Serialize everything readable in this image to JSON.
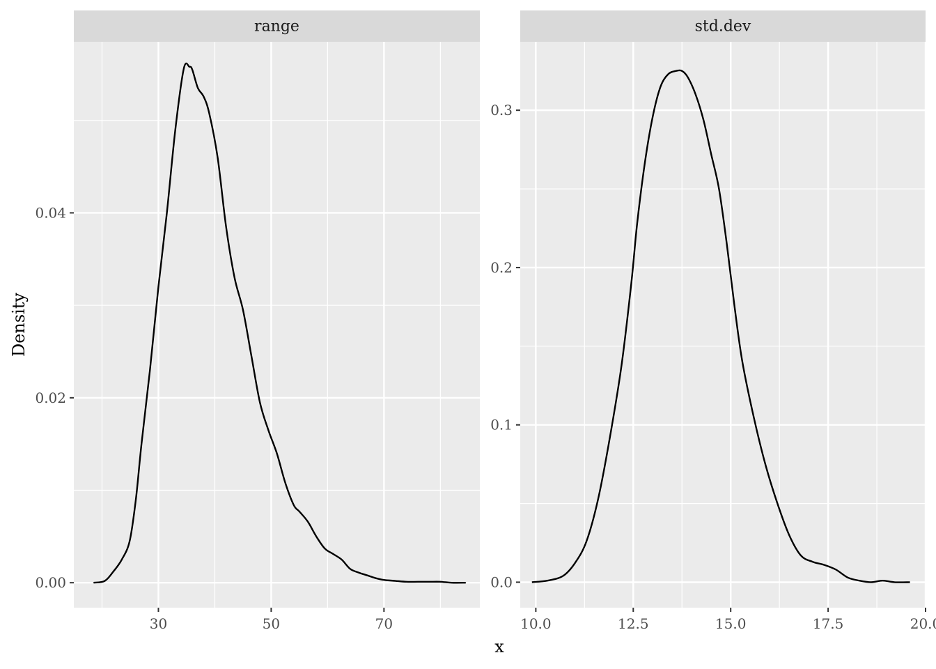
{
  "chart_data": {
    "type": "line",
    "facet_layout": "1 row, 2 columns, independent scales",
    "xlabel": "x",
    "ylabel": "Density",
    "grid": true,
    "colors": {
      "panel_bg": "#EBEBEB",
      "strip_bg": "#D9D9D9",
      "grid_major": "#FFFFFF",
      "line": "#000000"
    },
    "panels": [
      {
        "strip_label": "range",
        "xlim": [
          15,
          87
        ],
        "ylim": [
          -0.0027,
          0.0585
        ],
        "x_ticks": [
          30,
          50,
          70
        ],
        "x_tick_labels": [
          "30",
          "50",
          "70"
        ],
        "x_minor_ticks": [
          20,
          40,
          60,
          80
        ],
        "y_ticks": [
          0,
          0.02,
          0.04
        ],
        "y_tick_labels": [
          "0.00",
          "0.02",
          "0.04"
        ],
        "y_minor_ticks": [
          0.01,
          0.03,
          0.05
        ],
        "series": [
          {
            "x": [
              18.5,
              20.5,
              22.0,
              23.5,
              24.9,
              26.0,
              27.0,
              28.5,
              30.0,
              31.5,
              33.0,
              34.5,
              35.5,
              36.0,
              37.0,
              38.0,
              39.0,
              40.5,
              42.0,
              43.5,
              45.0,
              46.5,
              48.0,
              49.5,
              51.0,
              52.5,
              54.0,
              55.0,
              56.5,
              58.0,
              59.5,
              61.0,
              62.5,
              64.0,
              65.5,
              67.0,
              68.5,
              70.0,
              72.0,
              74.0,
              76.0,
              78.0,
              80.0,
              82.0,
              84.5
            ],
            "y": [
              0.0,
              0.0002,
              0.0012,
              0.0025,
              0.0045,
              0.009,
              0.015,
              0.023,
              0.032,
              0.04,
              0.049,
              0.0556,
              0.0558,
              0.0555,
              0.0535,
              0.0526,
              0.0508,
              0.046,
              0.0385,
              0.033,
              0.0295,
              0.0245,
              0.0195,
              0.0165,
              0.014,
              0.0108,
              0.0084,
              0.0077,
              0.0066,
              0.005,
              0.0037,
              0.0031,
              0.0025,
              0.0015,
              0.0011,
              0.0008,
              0.0005,
              0.0003,
              0.0002,
              0.0001,
              0.0001,
              0.0001,
              0.0001,
              0.0,
              0.0
            ]
          }
        ]
      },
      {
        "strip_label": "std.dev",
        "xlim": [
          9.6,
          20.0
        ],
        "ylim": [
          -0.0162,
          0.3435
        ],
        "x_ticks": [
          10.0,
          12.5,
          15.0,
          17.5,
          20.0
        ],
        "x_tick_labels": [
          "10.0",
          "12.5",
          "15.0",
          "17.5",
          "20.0"
        ],
        "x_minor_ticks": [
          11.25,
          13.75,
          16.25,
          18.75
        ],
        "y_ticks": [
          0.0,
          0.1,
          0.2,
          0.3
        ],
        "y_tick_labels": [
          "0.0",
          "0.1",
          "0.2",
          "0.3"
        ],
        "y_minor_ticks": [
          0.05,
          0.15,
          0.25
        ],
        "series": [
          {
            "x": [
              9.9,
              10.3,
              10.7,
              11.0,
              11.3,
              11.6,
              11.9,
              12.2,
              12.45,
              12.6,
              12.8,
              13.0,
              13.2,
              13.4,
              13.6,
              13.75,
              13.9,
              14.1,
              14.3,
              14.5,
              14.7,
              14.9,
              15.1,
              15.3,
              15.6,
              15.9,
              16.2,
              16.5,
              16.8,
              17.1,
              17.4,
              17.7,
              18.0,
              18.3,
              18.6,
              18.9,
              19.2,
              19.6
            ],
            "y": [
              0.0,
              0.001,
              0.004,
              0.012,
              0.026,
              0.053,
              0.092,
              0.138,
              0.19,
              0.228,
              0.267,
              0.296,
              0.315,
              0.323,
              0.325,
              0.325,
              0.321,
              0.31,
              0.294,
              0.272,
              0.25,
              0.215,
              0.175,
              0.14,
              0.104,
              0.074,
              0.05,
              0.03,
              0.017,
              0.013,
              0.011,
              0.008,
              0.003,
              0.001,
              0.0,
              0.001,
              0.0,
              0.0
            ]
          }
        ]
      }
    ]
  }
}
